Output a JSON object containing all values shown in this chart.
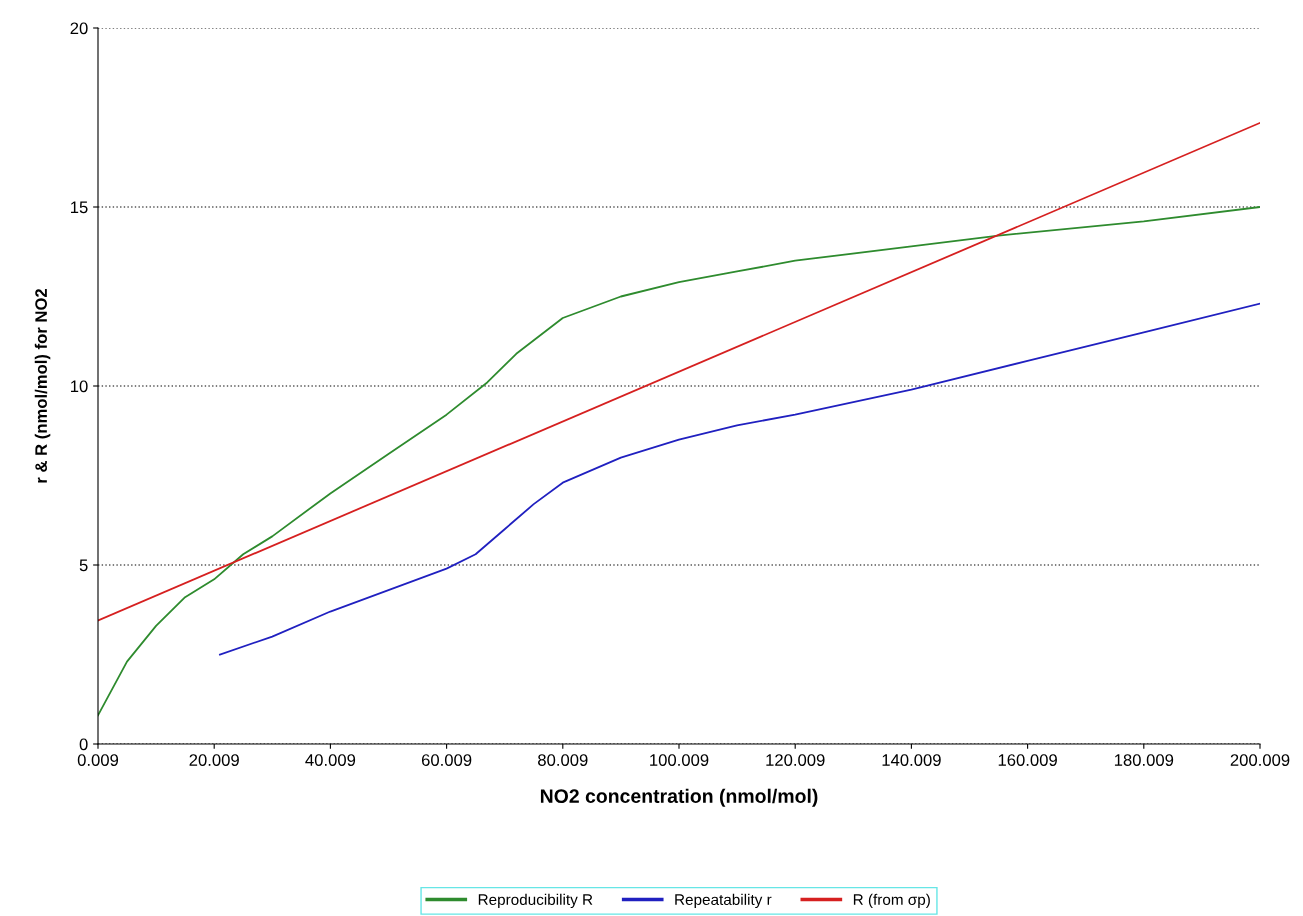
{
  "chart_data": {
    "type": "line",
    "xlabel": "NO2 concentration (nmol/mol)",
    "ylabel": "r & R (nmol/mol) for NO2",
    "xlim": [
      0.009,
      200.009
    ],
    "xticks": [
      0.009,
      20.009,
      40.009,
      60.009,
      80.009,
      100.009,
      120.009,
      140.009,
      160.009,
      180.009,
      200.009
    ],
    "ylim": [
      0,
      20
    ],
    "yticks": [
      0,
      5,
      10,
      15,
      20
    ],
    "grid": "y",
    "legend": "bottom",
    "line_style": "solid",
    "series": [
      {
        "name": "Reproducibility R",
        "color": "#2e8b2e",
        "x": [
          0.009,
          5,
          10,
          15,
          20,
          25,
          30,
          40,
          50,
          60,
          67,
          72,
          80,
          90,
          100,
          110,
          120,
          140,
          155,
          180,
          200.009
        ],
        "values": [
          0.8,
          2.3,
          3.3,
          4.1,
          4.6,
          5.3,
          5.8,
          7.0,
          8.1,
          9.2,
          10.1,
          10.9,
          11.9,
          12.5,
          12.9,
          13.2,
          13.5,
          13.9,
          14.2,
          14.6,
          15.0
        ]
      },
      {
        "name": "Repeatability r",
        "color": "#2020c0",
        "x": [
          21,
          30,
          40,
          50,
          60,
          65,
          70,
          75,
          80,
          90,
          100,
          110,
          120,
          140,
          160,
          180,
          200.009
        ],
        "values": [
          2.5,
          3.0,
          3.7,
          4.3,
          4.9,
          5.3,
          6.0,
          6.7,
          7.3,
          8.0,
          8.5,
          8.9,
          9.2,
          9.9,
          10.7,
          11.5,
          12.3
        ]
      },
      {
        "name": "R (from σp)",
        "color": "#d62020",
        "x": [
          0.009,
          200.009
        ],
        "values": [
          3.45,
          17.35
        ]
      }
    ]
  }
}
